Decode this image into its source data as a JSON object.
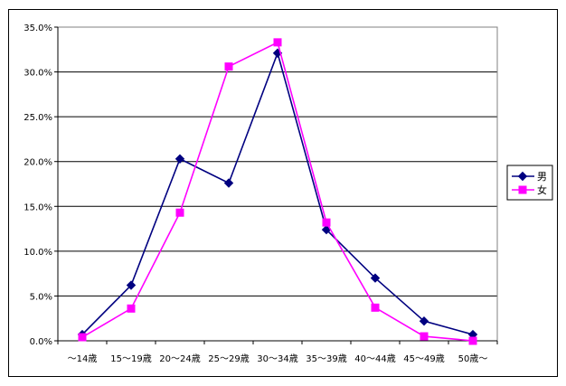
{
  "chart_data": {
    "type": "line",
    "categories": [
      "～14歳",
      "15～19歳",
      "20～24歳",
      "25～29歳",
      "30～34歳",
      "35～39歳",
      "40～44歳",
      "45～49歳",
      "50歳～"
    ],
    "ylim": [
      0,
      35
    ],
    "ytick_values": [
      0,
      5,
      10,
      15,
      20,
      25,
      30,
      35
    ],
    "ytick_labels": [
      "0.0%",
      "5.0%",
      "10.0%",
      "15.0%",
      "20.0%",
      "25.0%",
      "30.0%",
      "35.0%"
    ],
    "grid": true,
    "legend_position": "right",
    "series": [
      {
        "name": "男",
        "color": "#000080",
        "marker": "diamond",
        "values": [
          0.7,
          6.2,
          20.3,
          17.6,
          32.1,
          12.4,
          7.0,
          2.2,
          0.7
        ]
      },
      {
        "name": "女",
        "color": "#ff00ff",
        "marker": "square",
        "values": [
          0.4,
          3.6,
          14.3,
          30.6,
          33.3,
          13.2,
          3.7,
          0.5,
          0.0
        ]
      }
    ]
  }
}
